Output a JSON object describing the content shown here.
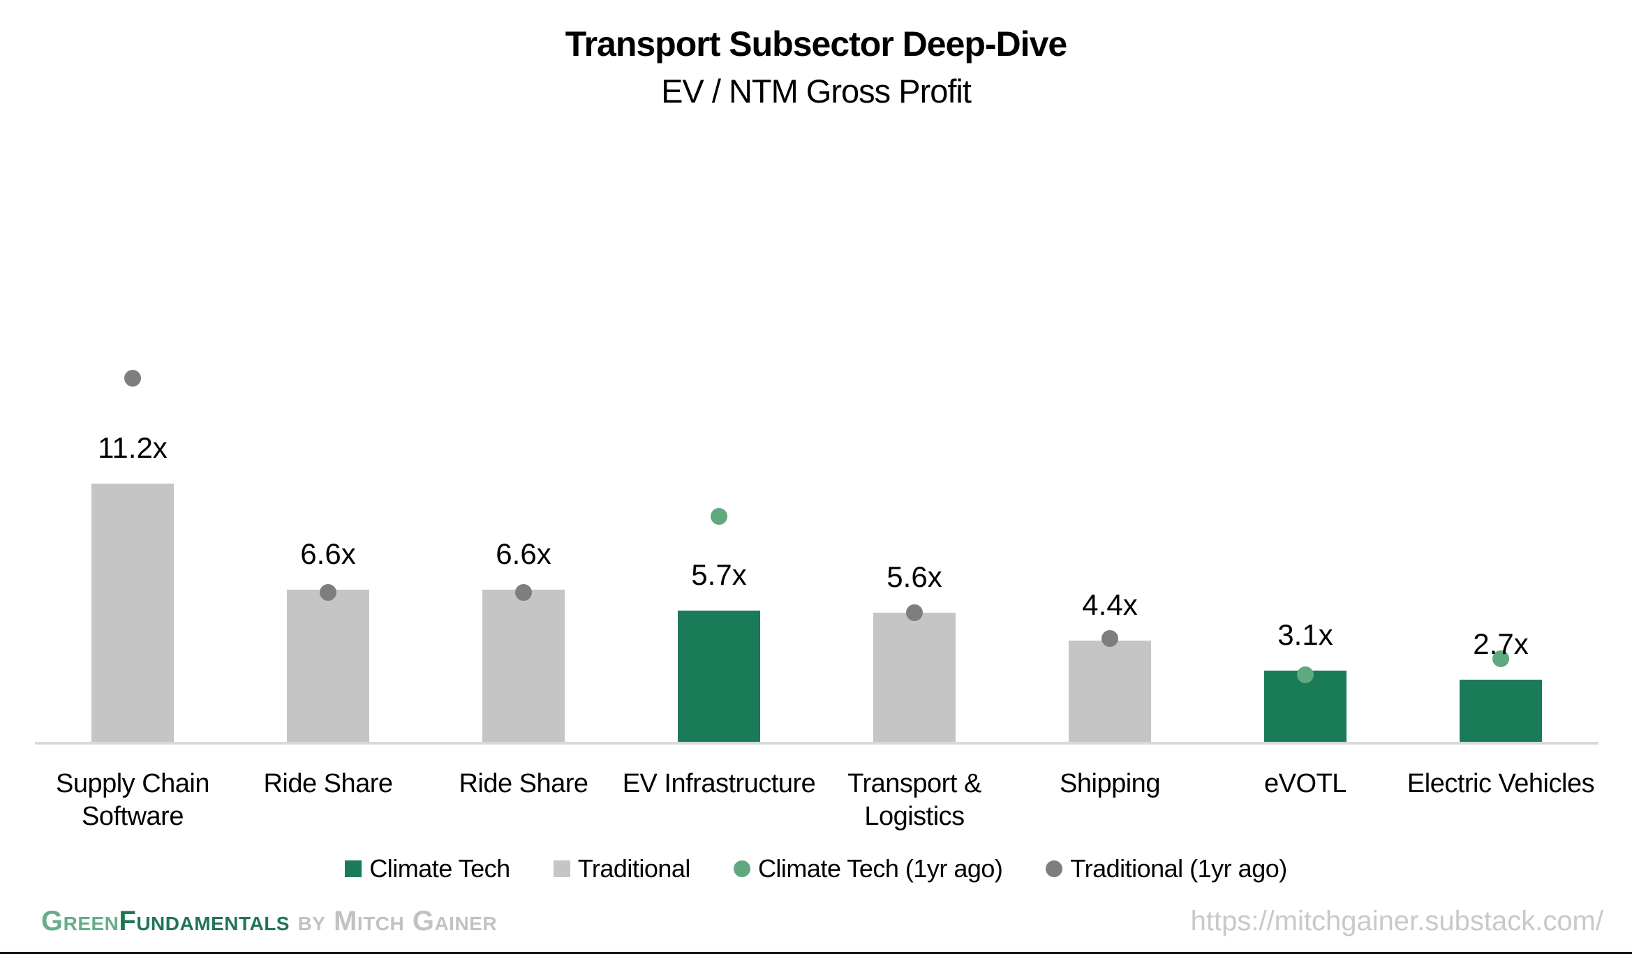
{
  "chart_data": {
    "type": "bar",
    "title": "Transport Subsector Deep-Dive",
    "subtitle": "EV / NTM Gross Profit",
    "value_suffix": "x",
    "ylim": [
      0,
      16.5
    ],
    "grid": false,
    "legend_position": "bottom",
    "categories": [
      "Supply Chain Software",
      "Ride Share",
      "Ride Share",
      "EV Infrastructure",
      "Transport & Logistics",
      "Shipping",
      "eVOTL",
      "Electric Vehicles"
    ],
    "points": [
      {
        "category": "Supply Chain Software",
        "category_lines": [
          "Supply Chain",
          "Software"
        ],
        "value": 11.2,
        "value_label": "11.2x",
        "series": "Traditional",
        "dot_series": "Traditional (1yr ago)",
        "dot_value": 15.8
      },
      {
        "category": "Ride Share",
        "category_lines": [
          "Ride Share"
        ],
        "value": 6.6,
        "value_label": "6.6x",
        "series": "Traditional",
        "dot_series": "Traditional (1yr ago)",
        "dot_value": 6.5
      },
      {
        "category": "Ride Share",
        "category_lines": [
          "Ride Share"
        ],
        "value": 6.6,
        "value_label": "6.6x",
        "series": "Traditional",
        "dot_series": "Traditional (1yr ago)",
        "dot_value": 6.5
      },
      {
        "category": "EV Infrastructure",
        "category_lines": [
          "EV Infrastructure"
        ],
        "value": 5.7,
        "value_label": "5.7x",
        "series": "Climate Tech",
        "dot_series": "Climate Tech (1yr ago)",
        "dot_value": 9.8
      },
      {
        "category": "Transport & Logistics",
        "category_lines": [
          "Transport &",
          "Logistics"
        ],
        "value": 5.6,
        "value_label": "5.6x",
        "series": "Traditional",
        "dot_series": "Traditional (1yr ago)",
        "dot_value": 5.6
      },
      {
        "category": "Shipping",
        "category_lines": [
          "Shipping"
        ],
        "value": 4.4,
        "value_label": "4.4x",
        "series": "Traditional",
        "dot_series": "Traditional (1yr ago)",
        "dot_value": 4.5
      },
      {
        "category": "eVOTL",
        "category_lines": [
          "eVOTL"
        ],
        "value": 3.1,
        "value_label": "3.1x",
        "series": "Climate Tech",
        "dot_series": "Climate Tech (1yr ago)",
        "dot_value": 2.9
      },
      {
        "category": "Electric Vehicles",
        "category_lines": [
          "Electric Vehicles"
        ],
        "value": 2.7,
        "value_label": "2.7x",
        "series": "Climate Tech",
        "dot_series": "Climate Tech (1yr ago)",
        "dot_value": 3.6
      }
    ],
    "legend": [
      {
        "label": "Climate Tech",
        "marker": "square",
        "color_key": "climate_tech"
      },
      {
        "label": "Traditional",
        "marker": "square",
        "color_key": "traditional"
      },
      {
        "label": "Climate Tech (1yr ago)",
        "marker": "circle",
        "color_key": "climate_tech_1yr"
      },
      {
        "label": "Traditional (1yr ago)",
        "marker": "circle",
        "color_key": "traditional_1yr"
      }
    ]
  },
  "colors": {
    "climate_tech": "#1a7b58",
    "traditional": "#c5c5c5",
    "climate_tech_1yr": "#60a87e",
    "traditional_1yr": "#7e7e7e",
    "axis_line": "#d9d9d9",
    "label_text": "#000000",
    "brand_green_light": "#68ad88",
    "brand_green_dark": "#217557",
    "brand_by_gray": "#c2c2c2",
    "url_gray": "#c9c9c9",
    "bottom_rule": "#161616"
  },
  "footer": {
    "brand_part1": "Green",
    "brand_part2": "Fundamentals",
    "brand_part3": " by Mitch Gainer",
    "url": "https://mitchgainer.substack.com/"
  }
}
